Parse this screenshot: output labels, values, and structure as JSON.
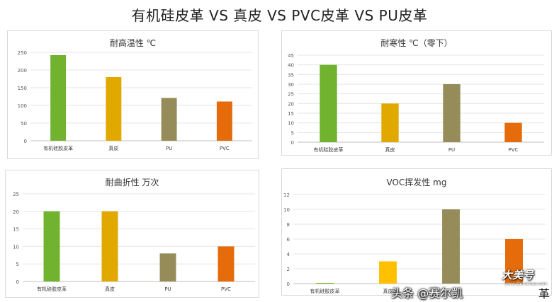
{
  "title": "有机硅皮革 VS 真皮 VS PVC皮革 VS PU皮革",
  "colors": [
    "#71b22e",
    "#e1a800",
    "#958c5a",
    "#e56b0b"
  ],
  "chart_data": [
    {
      "type": "bar",
      "title": "耐高温性 ℃",
      "categories": [
        "有机硅胶皮革",
        "真皮",
        "PU",
        "PVC"
      ],
      "values": [
        242,
        180,
        121,
        111
      ],
      "ylim": [
        0,
        250
      ],
      "yticks": [
        0,
        50,
        100,
        150,
        200,
        250
      ],
      "grid": true,
      "colors": [
        "#71b22e",
        "#e1a800",
        "#958c5a",
        "#e56b0b"
      ]
    },
    {
      "type": "bar",
      "title": "耐寒性 ℃（零下）",
      "categories": [
        "有机硅胶皮革",
        "真皮",
        "PU",
        "PVC"
      ],
      "values": [
        40,
        20,
        30,
        10
      ],
      "ylim": [
        0,
        45
      ],
      "yticks": [
        0,
        5,
        10,
        15,
        20,
        25,
        30,
        35,
        40,
        45
      ],
      "grid": true,
      "colors": [
        "#71b22e",
        "#e1a800",
        "#958c5a",
        "#e56b0b"
      ]
    },
    {
      "type": "bar",
      "title": "耐曲折性 万次",
      "categories": [
        "有机硅胶皮革",
        "真皮",
        "PU",
        "PVC"
      ],
      "values": [
        20,
        20,
        8,
        10
      ],
      "ylim": [
        0,
        25
      ],
      "yticks": [
        0,
        5,
        10,
        15,
        20,
        25
      ],
      "grid": true,
      "colors": [
        "#71b22e",
        "#e1a800",
        "#958c5a",
        "#e56b0b"
      ]
    },
    {
      "type": "bar",
      "title": "VOC挥发性 mg",
      "categories": [
        "有机硅胶皮革",
        "真皮",
        "",
        ""
      ],
      "values": [
        0.1,
        3,
        10,
        6
      ],
      "ylim": [
        0,
        12
      ],
      "yticks": [
        0,
        2,
        4,
        6,
        8,
        10,
        12
      ],
      "grid": true,
      "colors": [
        "#71b22e",
        "#ffc000",
        "#958c5a",
        "#e56b0b"
      ]
    }
  ],
  "watermark": "头条 @赛尔凯",
  "stamp": "大美号",
  "stamp_sub": "www.dameihao.com",
  "edge_text": "革"
}
